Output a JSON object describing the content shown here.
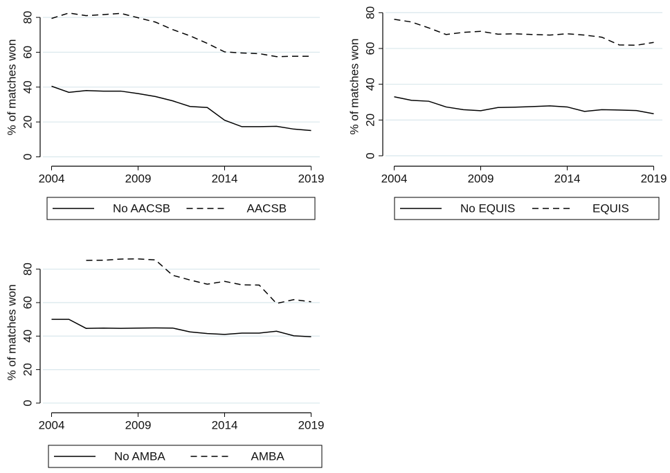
{
  "chart_data": [
    {
      "type": "line",
      "ylabel": "% of matches won",
      "grid": true,
      "x": [
        2004,
        2005,
        2006,
        2007,
        2008,
        2009,
        2010,
        2011,
        2012,
        2013,
        2014,
        2015,
        2016,
        2017,
        2018,
        2019
      ],
      "xlim": [
        2003.5,
        2019.5
      ],
      "xticks": [
        2004,
        2009,
        2014,
        2019
      ],
      "ylim": [
        -3,
        86
      ],
      "yticks": [
        0,
        20,
        40,
        60,
        80
      ],
      "series": [
        {
          "name": "No AACSB",
          "color": "#000000",
          "style": "solid",
          "values": [
            40.5,
            37,
            38,
            37.7,
            37.7,
            36.3,
            34.6,
            32.1,
            28.9,
            28.3,
            21,
            17.3,
            17.3,
            17.5,
            15.9,
            15.1
          ]
        },
        {
          "name": "AACSB",
          "color": "#000000",
          "style": "dashed",
          "values": [
            79.4,
            82.5,
            81,
            81.6,
            82.3,
            79.8,
            77.3,
            73,
            69.4,
            65.1,
            60.2,
            59.6,
            59.2,
            57.5,
            57.7,
            57.7
          ]
        }
      ]
    },
    {
      "type": "line",
      "ylabel": "% of matches won",
      "grid": true,
      "x": [
        2004,
        2005,
        2006,
        2007,
        2008,
        2009,
        2010,
        2011,
        2012,
        2013,
        2014,
        2015,
        2016,
        2017,
        2018,
        2019
      ],
      "xlim": [
        2003.5,
        2019.5
      ],
      "xticks": [
        2004,
        2009,
        2014,
        2019
      ],
      "ylim": [
        -3.5,
        84
      ],
      "yticks": [
        0,
        20,
        40,
        60,
        80
      ],
      "series": [
        {
          "name": "No EQUIS",
          "color": "#000000",
          "style": "solid",
          "values": [
            33,
            31,
            30.5,
            27.3,
            25.8,
            25.2,
            27,
            27.2,
            27.5,
            27.9,
            27.3,
            24.8,
            25.8,
            25.6,
            25.3,
            23.5
          ]
        },
        {
          "name": "EQUIS",
          "color": "#000000",
          "style": "dashed",
          "values": [
            76.3,
            74.8,
            71.5,
            67.8,
            69,
            69.6,
            68,
            68.2,
            67.8,
            67.5,
            68.2,
            67.5,
            66.3,
            62,
            61.8,
            63.4
          ]
        }
      ]
    },
    {
      "type": "line",
      "ylabel": "% of matches won",
      "grid": true,
      "x": [
        2004,
        2005,
        2006,
        2007,
        2008,
        2009,
        2010,
        2011,
        2012,
        2013,
        2014,
        2015,
        2016,
        2017,
        2018,
        2019
      ],
      "xlim": [
        2003.5,
        2019.5
      ],
      "xticks": [
        2004,
        2009,
        2014,
        2019
      ],
      "ylim": [
        -3.3,
        91
      ],
      "yticks": [
        0,
        20,
        40,
        60,
        80
      ],
      "series": [
        {
          "name": "No AMBA",
          "color": "#000000",
          "style": "solid",
          "values": [
            50,
            50,
            44.6,
            44.8,
            44.6,
            44.8,
            44.9,
            44.8,
            42.5,
            41.5,
            41,
            41.8,
            41.8,
            42.9,
            40.2,
            39.6
          ]
        },
        {
          "name": "AMBA",
          "color": "#000000",
          "style": "dashed",
          "values": [
            null,
            null,
            85.2,
            85.3,
            86,
            86.1,
            85.5,
            76.3,
            73.5,
            71,
            72.7,
            70.6,
            70.5,
            59.5,
            61.8,
            60.5
          ]
        }
      ]
    }
  ]
}
